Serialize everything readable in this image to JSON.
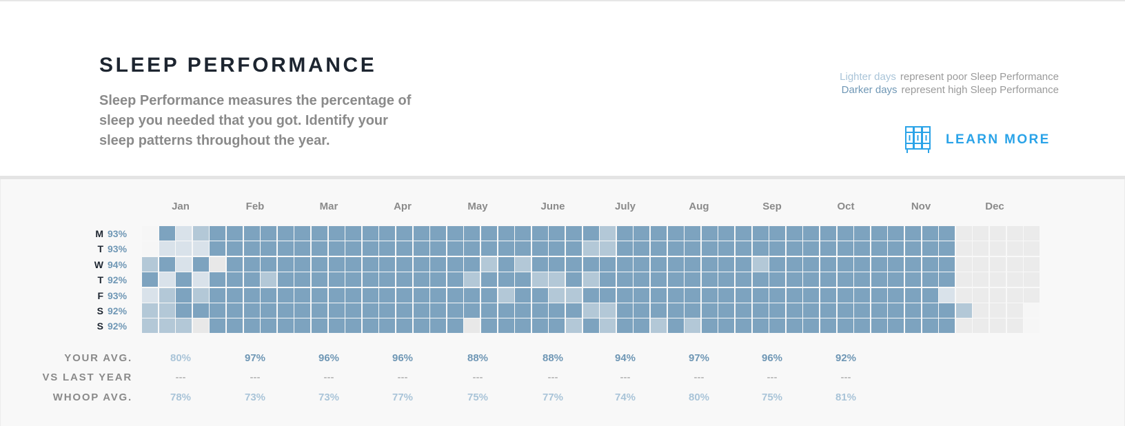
{
  "header": {
    "title": "SLEEP PERFORMANCE",
    "description": "Sleep Performance measures the percentage of sleep you needed that you got. Identify your sleep patterns throughout the year.",
    "legend": {
      "lighter_label": "Lighter days",
      "lighter_text": "represent poor Sleep Performance",
      "darker_label": "Darker days",
      "darker_text": "represent high Sleep Performance"
    },
    "learn_more": "LEARN MORE",
    "learn_more_icon": "bookshelf-icon",
    "accent_color": "#2aa3e8"
  },
  "months": [
    "Jan",
    "Feb",
    "Mar",
    "Apr",
    "May",
    "June",
    "July",
    "Aug",
    "Sep",
    "Oct",
    "Nov",
    "Dec"
  ],
  "days": [
    {
      "day": "M",
      "pct": "93%"
    },
    {
      "day": "T",
      "pct": "93%"
    },
    {
      "day": "W",
      "pct": "94%"
    },
    {
      "day": "T",
      "pct": "92%"
    },
    {
      "day": "F",
      "pct": "93%"
    },
    {
      "day": "S",
      "pct": "92%"
    },
    {
      "day": "S",
      "pct": "92%"
    }
  ],
  "stats": {
    "labels": {
      "your_avg": "YOUR AVG.",
      "vs_last_year": "VS LAST YEAR",
      "whoop_avg": "WHOOP AVG."
    },
    "your_avg": [
      "80%",
      "97%",
      "96%",
      "96%",
      "88%",
      "88%",
      "94%",
      "97%",
      "96%",
      "92%"
    ],
    "your_avg_tone": [
      "light",
      "dark",
      "dark",
      "dark",
      "dark",
      "dark",
      "dark",
      "dark",
      "dark",
      "dark"
    ],
    "vs_last_year": [
      "---",
      "---",
      "---",
      "---",
      "---",
      "---",
      "---",
      "---",
      "---",
      "---"
    ],
    "whoop_avg": [
      "78%",
      "73%",
      "73%",
      "77%",
      "75%",
      "77%",
      "74%",
      "80%",
      "75%",
      "81%"
    ]
  },
  "colors": {
    "dark": "#7da3bf",
    "medium": "#b3c8d7",
    "light": "#d9e2ea",
    "gray": "#e8e8e8",
    "future": "#ebebeb",
    "empty": "#f6f6f6"
  },
  "heatmap": {
    "weeks": 53,
    "levels_legend": "0=empty,1=gray,2=light,3=medium,4=dark,5=future",
    "rows": [
      "04234444444444444444444444434444444444444444444455555",
      "02224444444444444444444444334444444444444444444455555",
      "34241444444444444444343444444444444434444444444455555",
      "42424443444444444443444334344444444444444444444455555",
      "23434444444444444444434433444444444444444444444255555",
      "33444444444444444444444444334444444444444444444435550",
      "33314444444444444441444443434434344444444444444455550"
    ]
  }
}
